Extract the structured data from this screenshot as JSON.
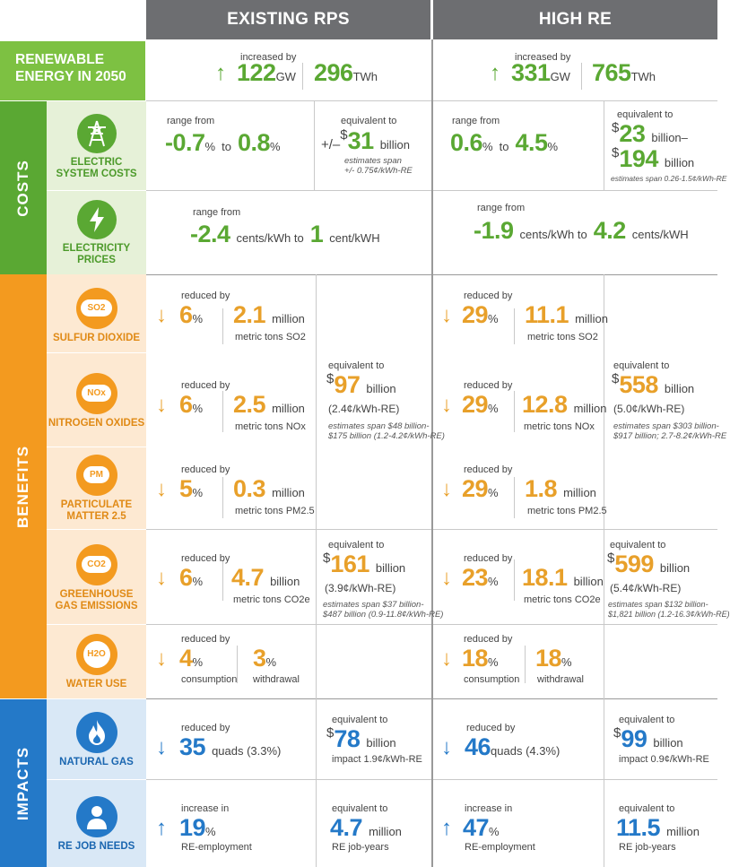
{
  "columns": {
    "existing": "EXISTING RPS",
    "high": "HIGH RE"
  },
  "bands": {
    "costs": "COSTS",
    "benefits": "BENEFITS",
    "impacts": "IMPACTS"
  },
  "renewable": {
    "label_line1": "RENEWABLE",
    "label_line2": "ENERGY IN 2050",
    "existing": {
      "caption": "increased by",
      "gw": "122",
      "gw_unit": "GW",
      "twh": "296",
      "twh_unit": "TWh"
    },
    "high": {
      "caption": "increased by",
      "gw": "331",
      "gw_unit": "GW",
      "twh": "765",
      "twh_unit": "TWh"
    }
  },
  "electric_system_costs": {
    "label_line1": "ELECTRIC",
    "label_line2": "SYSTEM COSTS",
    "existing": {
      "caption": "range from",
      "low": "-0.7",
      "high": "0.8",
      "pct": "%",
      "to": "to",
      "equiv_caption": "equivalent to",
      "equiv_prefix": "+/–",
      "dollar": "$",
      "equiv": "31",
      "equiv_unit": "billion",
      "note1": "estimates span",
      "note2": "+/- 0.75¢/kWh-RE"
    },
    "high": {
      "caption": "range from",
      "low": "0.6",
      "high": "4.5",
      "pct": "%",
      "to": "to",
      "equiv_caption": "equivalent to",
      "dollar": "$",
      "equiv_a": "23",
      "equiv_a_unit": "billion–",
      "equiv_b": "194",
      "equiv_b_unit": "billion",
      "note1": "estimates span 0.26-1.5¢/kWh-RE"
    }
  },
  "electricity_prices": {
    "label_line1": "ELECTRICITY",
    "label_line2": "PRICES",
    "existing": {
      "caption": "range from",
      "low": "-2.4",
      "low_unit": "cents/kWh to",
      "high": "1",
      "high_unit": "cent/kWH"
    },
    "high": {
      "caption": "range from",
      "low": "-1.9",
      "low_unit": "cents/kWh to",
      "high": "4.2",
      "high_unit": "cents/kWH"
    }
  },
  "sulfur_dioxide": {
    "label": "SULFUR DIOXIDE",
    "icon_text": "SO2",
    "existing": {
      "caption": "reduced by",
      "pct": "6",
      "amount": "2.1",
      "amount_unit": "million",
      "sub": "metric tons SO2"
    },
    "high": {
      "caption": "reduced by",
      "pct": "29",
      "amount": "11.1",
      "amount_unit": "million",
      "sub": "metric tons SO2"
    }
  },
  "nitrogen_oxides": {
    "label": "NITROGEN OXIDES",
    "icon_text": "NOx",
    "existing": {
      "caption": "reduced by",
      "pct": "6",
      "amount": "2.5",
      "amount_unit": "million",
      "sub": "metric tons NOx"
    },
    "high": {
      "caption": "reduced by",
      "pct": "29",
      "amount": "12.8",
      "amount_unit": "million",
      "sub": "metric tons NOx"
    }
  },
  "air_equiv": {
    "existing": {
      "caption": "equivalent to",
      "dollar": "$",
      "value": "97",
      "unit": "billion",
      "rate": "(2.4¢/kWh-RE)",
      "note1": "estimates span $48 billion-",
      "note2": "$175 billion (1.2-4.2¢/kWh-RE)"
    },
    "high": {
      "caption": "equivalent to",
      "dollar": "$",
      "value": "558",
      "unit": "billion",
      "rate": "(5.0¢/kWh-RE)",
      "note1": "estimates span $303 billion-",
      "note2": "$917 billion; 2.7-8.2¢/kWh-RE"
    }
  },
  "particulate": {
    "label_line1": "PARTICULATE",
    "label_line2": "MATTER 2.5",
    "icon_text": "PM",
    "existing": {
      "caption": "reduced by",
      "pct": "5",
      "amount": "0.3",
      "amount_unit": "million",
      "sub": "metric tons PM2.5"
    },
    "high": {
      "caption": "reduced by",
      "pct": "29",
      "amount": "1.8",
      "amount_unit": "million",
      "sub": "metric tons PM2.5"
    }
  },
  "ghg": {
    "label_line1": "GREENHOUSE",
    "label_line2": "GAS EMISSIONS",
    "icon_text": "CO2",
    "existing": {
      "caption": "reduced by",
      "pct": "6",
      "amount": "4.7",
      "amount_unit": "billion",
      "sub": "metric tons CO2e",
      "equiv_caption": "equivalent to",
      "dollar": "$",
      "equiv": "161",
      "equiv_unit": "billion",
      "rate": "(3.9¢/kWh-RE)",
      "note1": "estimates span $37 billion-",
      "note2": "$487 billion (0.9-11.8¢/kWh-RE)"
    },
    "high": {
      "caption": "reduced by",
      "pct": "23",
      "amount": "18.1",
      "amount_unit": "billion",
      "sub": "metric tons CO2e",
      "equiv_caption": "equivalent to",
      "dollar": "$",
      "equiv": "599",
      "equiv_unit": "billion",
      "rate": "(5.4¢/kWh-RE)",
      "note1": "estimates span $132 billion-",
      "note2": "$1,821 billion (1.2-16.3¢/kWh-RE)"
    }
  },
  "water": {
    "label": "WATER USE",
    "icon_text": "H2O",
    "existing": {
      "caption": "reduced by",
      "a": "4",
      "a_sub": "consumption",
      "b": "3",
      "b_sub": "withdrawal"
    },
    "high": {
      "caption": "reduced by",
      "a": "18",
      "a_sub": "consumption",
      "b": "18",
      "b_sub": "withdrawal"
    }
  },
  "natural_gas": {
    "label": "NATURAL GAS",
    "existing": {
      "caption": "reduced by",
      "value": "35",
      "unit": "quads (3.3%)",
      "equiv_caption": "equivalent to",
      "dollar": "$",
      "equiv": "78",
      "equiv_unit": "billion",
      "sub": "impact 1.9¢/kWh-RE"
    },
    "high": {
      "caption": "reduced by",
      "value": "46",
      "unit": "quads (4.3%)",
      "equiv_caption": "equivalent to",
      "dollar": "$",
      "equiv": "99",
      "equiv_unit": "billion",
      "sub": "impact 0.9¢/kWh-RE"
    }
  },
  "jobs": {
    "label": "RE JOB NEEDS",
    "existing": {
      "caption": "increase in",
      "value": "19",
      "pct": "%",
      "sub": "RE-employment",
      "equiv_caption": "equivalent to",
      "equiv": "4.7",
      "equiv_unit": "million",
      "equiv_sub": "RE job-years"
    },
    "high": {
      "caption": "increase in",
      "value": "47",
      "pct": "%",
      "sub": "RE-employment",
      "equiv_caption": "equivalent to",
      "equiv": "11.5",
      "equiv_unit": "million",
      "equiv_sub": "RE job-years"
    }
  },
  "colors": {
    "green": "#5aa833",
    "orange": "#f39a1f",
    "blue": "#2479c8",
    "gray": "#6d6e71"
  }
}
